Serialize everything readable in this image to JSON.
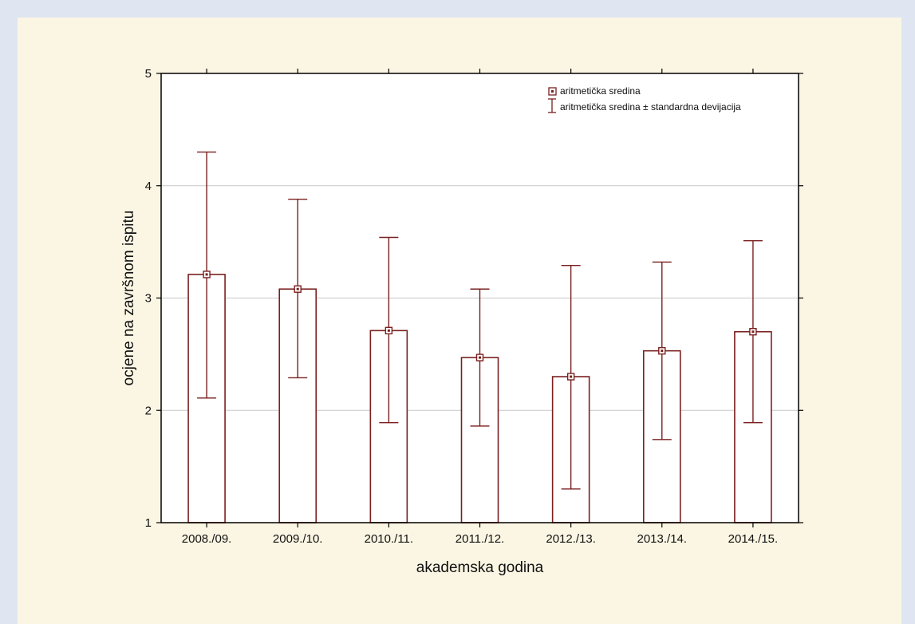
{
  "colors": {
    "background": "#dfe6f1",
    "panel": "#fbf6e3",
    "plot_area": "#ffffff",
    "series": "#7a1f1f",
    "grid": "#c8c8c8",
    "text": "#111111"
  },
  "chart_data": {
    "type": "bar",
    "title": "",
    "xlabel": "akademska godina",
    "ylabel": "ocjene na završnom ispitu",
    "ylim": [
      1,
      5
    ],
    "yticks": [
      "1",
      "2",
      "3",
      "4",
      "5"
    ],
    "grid": "horizontal",
    "legend_position": "top-right",
    "categories": [
      "2008./09.",
      "2009./10.",
      "2010./11.",
      "2011./12.",
      "2012./13.",
      "2013./14.",
      "2014./15."
    ],
    "series": [
      {
        "name": "aritmetička sredina",
        "values": [
          3.21,
          3.08,
          2.71,
          2.47,
          2.3,
          2.53,
          2.7
        ]
      },
      {
        "name": "aritmetička sredina ± standardna devijacija",
        "lower": [
          2.11,
          2.29,
          1.89,
          1.86,
          1.3,
          1.74,
          1.89
        ],
        "upper": [
          4.3,
          3.88,
          3.54,
          3.08,
          3.29,
          3.32,
          3.51
        ]
      }
    ]
  }
}
